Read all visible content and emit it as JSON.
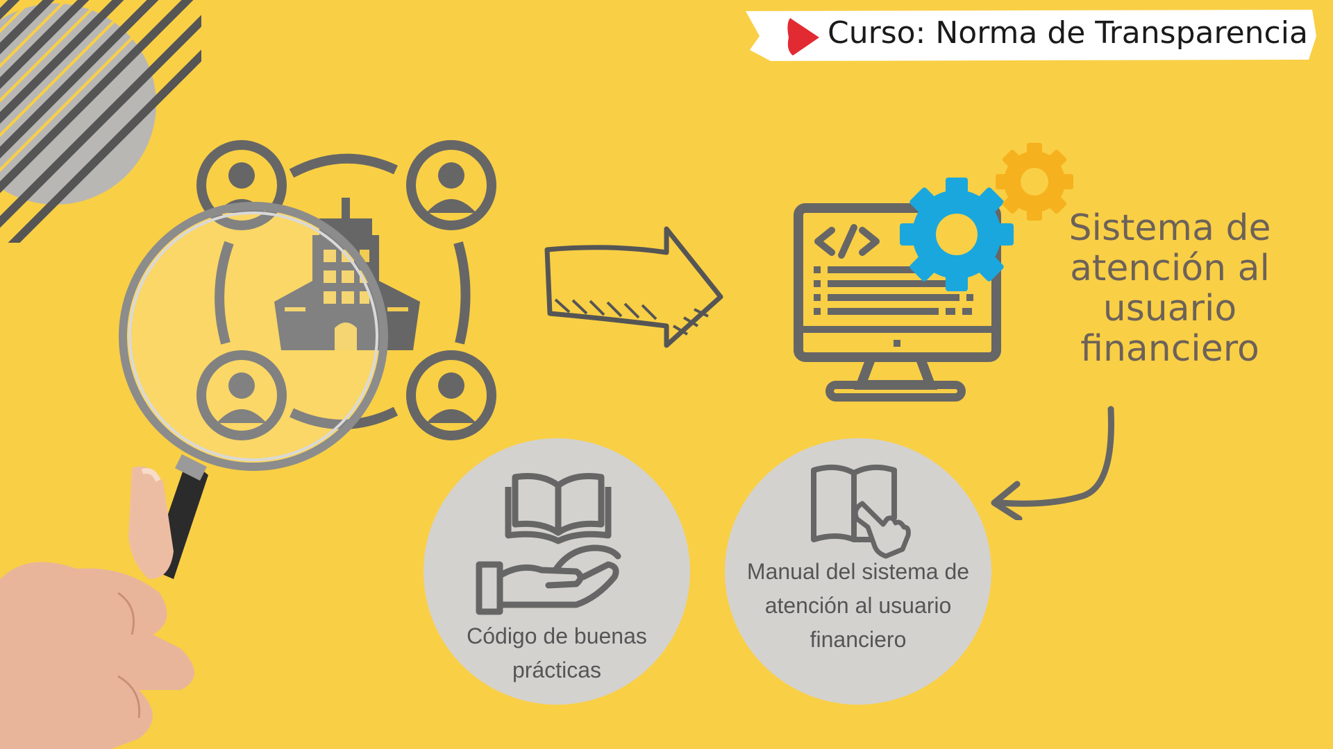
{
  "banner": {
    "title": "Curso: Norma de Transparencia",
    "icon": "play-icon",
    "icon_color": "#e22a32"
  },
  "diagram": {
    "left_group": {
      "icons": [
        "user-icon",
        "user-icon",
        "user-icon",
        "user-icon",
        "building-icon",
        "magnifying-glass-icon"
      ]
    },
    "arrow_icon": "right-arrow-icon",
    "system_icons": [
      "computer-monitor-icon",
      "code-icon",
      "gear-icon",
      "gear-icon"
    ],
    "system_label": "Sistema de atención al usuario financiero",
    "curved_arrow_icon": "curved-arrow-icon"
  },
  "cards": [
    {
      "icons": [
        "open-book-icon",
        "open-hand-icon"
      ],
      "label": "Código de buenas prácticas"
    },
    {
      "icons": [
        "open-book-icon",
        "pointing-hand-icon"
      ],
      "label": "Manual del sistema de atención al usuario financiero"
    }
  ],
  "colors": {
    "background": "#f9cf45",
    "icon_gray": "#666666",
    "gear_blue": "#1aa7de",
    "gear_orange": "#f6b11e",
    "card_gray": "#d4d2cf",
    "text_gray": "#6d6259"
  }
}
